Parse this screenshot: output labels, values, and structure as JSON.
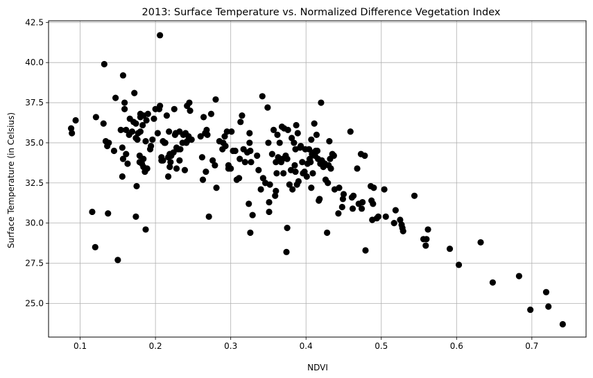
{
  "chart_data": {
    "type": "scatter",
    "title": "2013: Surface Temperature vs. Normalized Difference Vegetation Index",
    "xlabel": "NDVI",
    "ylabel": "Surface Temperature (in Celsius)",
    "xlim": [
      0.058,
      0.772
    ],
    "ylim": [
      22.9,
      42.6
    ],
    "xticks": [
      0.1,
      0.2,
      0.3,
      0.4,
      0.5,
      0.6,
      0.7
    ],
    "xtick_labels": [
      "0.1",
      "0.2",
      "0.3",
      "0.4",
      "0.5",
      "0.6",
      "0.7"
    ],
    "yticks": [
      25.0,
      27.5,
      30.0,
      32.5,
      35.0,
      37.5,
      40.0,
      42.5
    ],
    "ytick_labels": [
      "25.0",
      "27.5",
      "30.0",
      "32.5",
      "35.0",
      "37.5",
      "40.0",
      "42.5"
    ],
    "grid": true,
    "marker_color": "#000000",
    "points": [
      [
        0.088,
        35.9
      ],
      [
        0.089,
        35.6
      ],
      [
        0.094,
        36.4
      ],
      [
        0.116,
        30.7
      ],
      [
        0.12,
        28.5
      ],
      [
        0.121,
        36.6
      ],
      [
        0.131,
        36.2
      ],
      [
        0.132,
        39.9
      ],
      [
        0.134,
        35.1
      ],
      [
        0.136,
        34.8
      ],
      [
        0.137,
        30.6
      ],
      [
        0.138,
        35.0
      ],
      [
        0.145,
        34.5
      ],
      [
        0.147,
        37.8
      ],
      [
        0.15,
        27.7
      ],
      [
        0.154,
        35.8
      ],
      [
        0.156,
        34.7
      ],
      [
        0.156,
        32.9
      ],
      [
        0.157,
        34.0
      ],
      [
        0.157,
        39.2
      ],
      [
        0.159,
        37.5
      ],
      [
        0.159,
        37.1
      ],
      [
        0.161,
        35.8
      ],
      [
        0.161,
        34.3
      ],
      [
        0.163,
        33.7
      ],
      [
        0.165,
        35.5
      ],
      [
        0.166,
        36.5
      ],
      [
        0.169,
        35.7
      ],
      [
        0.171,
        36.3
      ],
      [
        0.172,
        38.1
      ],
      [
        0.174,
        36.2
      ],
      [
        0.174,
        35.3
      ],
      [
        0.174,
        30.4
      ],
      [
        0.175,
        32.3
      ],
      [
        0.176,
        35.2
      ],
      [
        0.177,
        35.6
      ],
      [
        0.179,
        34.2
      ],
      [
        0.179,
        33.8
      ],
      [
        0.18,
        36.6
      ],
      [
        0.18,
        36.8
      ],
      [
        0.18,
        35.7
      ],
      [
        0.182,
        33.7
      ],
      [
        0.183,
        36.1
      ],
      [
        0.184,
        33.5
      ],
      [
        0.184,
        34.0
      ],
      [
        0.184,
        36.7
      ],
      [
        0.186,
        33.2
      ],
      [
        0.187,
        35.1
      ],
      [
        0.187,
        29.6
      ],
      [
        0.188,
        36.4
      ],
      [
        0.189,
        33.4
      ],
      [
        0.19,
        36.8
      ],
      [
        0.193,
        34.6
      ],
      [
        0.194,
        34.8
      ],
      [
        0.196,
        35.2
      ],
      [
        0.198,
        36.5
      ],
      [
        0.2,
        37.1
      ],
      [
        0.203,
        35.6
      ],
      [
        0.205,
        37.1
      ],
      [
        0.206,
        37.3
      ],
      [
        0.206,
        41.7
      ],
      [
        0.208,
        33.9
      ],
      [
        0.208,
        34.1
      ],
      [
        0.21,
        35.1
      ],
      [
        0.21,
        33.9
      ],
      [
        0.212,
        35.0
      ],
      [
        0.213,
        35.0
      ],
      [
        0.215,
        36.7
      ],
      [
        0.217,
        34.1
      ],
      [
        0.217,
        32.9
      ],
      [
        0.218,
        35.7
      ],
      [
        0.219,
        34.3
      ],
      [
        0.219,
        33.5
      ],
      [
        0.22,
        33.8
      ],
      [
        0.221,
        34.2
      ],
      [
        0.224,
        34.4
      ],
      [
        0.225,
        37.1
      ],
      [
        0.226,
        35.5
      ],
      [
        0.227,
        35.6
      ],
      [
        0.228,
        34.7
      ],
      [
        0.228,
        33.4
      ],
      [
        0.23,
        34.6
      ],
      [
        0.232,
        35.7
      ],
      [
        0.232,
        33.9
      ],
      [
        0.233,
        34.6
      ],
      [
        0.236,
        35.0
      ],
      [
        0.237,
        35.5
      ],
      [
        0.239,
        33.3
      ],
      [
        0.24,
        35.6
      ],
      [
        0.241,
        35.0
      ],
      [
        0.242,
        35.1
      ],
      [
        0.242,
        37.3
      ],
      [
        0.244,
        35.4
      ],
      [
        0.245,
        37.5
      ],
      [
        0.246,
        37.0
      ],
      [
        0.248,
        35.2
      ],
      [
        0.26,
        35.4
      ],
      [
        0.262,
        34.1
      ],
      [
        0.263,
        32.7
      ],
      [
        0.264,
        36.6
      ],
      [
        0.266,
        35.6
      ],
      [
        0.267,
        33.2
      ],
      [
        0.268,
        35.8
      ],
      [
        0.269,
        35.5
      ],
      [
        0.271,
        30.4
      ],
      [
        0.274,
        36.8
      ],
      [
        0.276,
        33.9
      ],
      [
        0.279,
        33.6
      ],
      [
        0.28,
        37.7
      ],
      [
        0.281,
        32.2
      ],
      [
        0.285,
        35.1
      ],
      [
        0.289,
        34.6
      ],
      [
        0.29,
        35.0
      ],
      [
        0.292,
        35.4
      ],
      [
        0.293,
        34.8
      ],
      [
        0.295,
        35.7
      ],
      [
        0.297,
        33.4
      ],
      [
        0.297,
        33.6
      ],
      [
        0.3,
        33.4
      ],
      [
        0.301,
        35.7
      ],
      [
        0.303,
        34.5
      ],
      [
        0.306,
        34.5
      ],
      [
        0.308,
        32.7
      ],
      [
        0.311,
        32.8
      ],
      [
        0.312,
        34.0
      ],
      [
        0.313,
        36.3
      ],
      [
        0.315,
        36.7
      ],
      [
        0.317,
        34.6
      ],
      [
        0.319,
        33.8
      ],
      [
        0.322,
        34.4
      ],
      [
        0.324,
        31.2
      ],
      [
        0.325,
        35.6
      ],
      [
        0.325,
        35.0
      ],
      [
        0.326,
        29.4
      ],
      [
        0.326,
        34.5
      ],
      [
        0.327,
        33.8
      ],
      [
        0.329,
        30.5
      ],
      [
        0.335,
        34.2
      ],
      [
        0.337,
        33.3
      ],
      [
        0.34,
        32.1
      ],
      [
        0.342,
        37.9
      ],
      [
        0.343,
        32.8
      ],
      [
        0.346,
        32.5
      ],
      [
        0.349,
        37.2
      ],
      [
        0.35,
        35.0
      ],
      [
        0.351,
        31.3
      ],
      [
        0.351,
        30.7
      ],
      [
        0.352,
        32.4
      ],
      [
        0.355,
        34.3
      ],
      [
        0.357,
        35.8
      ],
      [
        0.359,
        31.7
      ],
      [
        0.36,
        33.8
      ],
      [
        0.36,
        32.0
      ],
      [
        0.361,
        33.1
      ],
      [
        0.362,
        35.5
      ],
      [
        0.363,
        34.1
      ],
      [
        0.365,
        35.0
      ],
      [
        0.366,
        33.9
      ],
      [
        0.367,
        33.8
      ],
      [
        0.368,
        36.0
      ],
      [
        0.369,
        34.0
      ],
      [
        0.37,
        33.1
      ],
      [
        0.371,
        35.9
      ],
      [
        0.373,
        34.2
      ],
      [
        0.374,
        28.2
      ],
      [
        0.375,
        29.7
      ],
      [
        0.375,
        34.0
      ],
      [
        0.376,
        35.8
      ],
      [
        0.378,
        32.4
      ],
      [
        0.38,
        33.3
      ],
      [
        0.381,
        35.3
      ],
      [
        0.382,
        32.1
      ],
      [
        0.384,
        35.0
      ],
      [
        0.385,
        33.6
      ],
      [
        0.386,
        34.6
      ],
      [
        0.386,
        33.2
      ],
      [
        0.387,
        36.1
      ],
      [
        0.388,
        32.4
      ],
      [
        0.389,
        35.6
      ],
      [
        0.39,
        32.6
      ],
      [
        0.392,
        34.7
      ],
      [
        0.393,
        34.8
      ],
      [
        0.395,
        33.8
      ],
      [
        0.396,
        33.1
      ],
      [
        0.398,
        33.2
      ],
      [
        0.399,
        34.6
      ],
      [
        0.401,
        32.9
      ],
      [
        0.402,
        33.7
      ],
      [
        0.404,
        34.6
      ],
      [
        0.405,
        34.0
      ],
      [
        0.406,
        33.8
      ],
      [
        0.407,
        35.2
      ],
      [
        0.407,
        32.2
      ],
      [
        0.408,
        34.3
      ],
      [
        0.409,
        33.1
      ],
      [
        0.41,
        34.4
      ],
      [
        0.411,
        36.2
      ],
      [
        0.412,
        34.2
      ],
      [
        0.413,
        34.5
      ],
      [
        0.414,
        35.5
      ],
      [
        0.415,
        34.5
      ],
      [
        0.416,
        34.0
      ],
      [
        0.417,
        31.4
      ],
      [
        0.418,
        31.5
      ],
      [
        0.419,
        33.7
      ],
      [
        0.42,
        37.5
      ],
      [
        0.421,
        33.9
      ],
      [
        0.422,
        33.8
      ],
      [
        0.423,
        33.5
      ],
      [
        0.425,
        33.7
      ],
      [
        0.426,
        32.7
      ],
      [
        0.428,
        29.4
      ],
      [
        0.429,
        32.5
      ],
      [
        0.43,
        33.6
      ],
      [
        0.431,
        35.1
      ],
      [
        0.432,
        34.0
      ],
      [
        0.433,
        33.4
      ],
      [
        0.435,
        34.3
      ],
      [
        0.437,
        34.2
      ],
      [
        0.438,
        32.1
      ],
      [
        0.443,
        30.6
      ],
      [
        0.444,
        32.2
      ],
      [
        0.448,
        31.0
      ],
      [
        0.449,
        31.5
      ],
      [
        0.45,
        31.8
      ],
      [
        0.459,
        35.7
      ],
      [
        0.461,
        31.6
      ],
      [
        0.462,
        30.9
      ],
      [
        0.463,
        31.7
      ],
      [
        0.468,
        33.4
      ],
      [
        0.47,
        31.2
      ],
      [
        0.473,
        34.3
      ],
      [
        0.474,
        30.9
      ],
      [
        0.475,
        31.3
      ],
      [
        0.478,
        34.2
      ],
      [
        0.479,
        28.3
      ],
      [
        0.486,
        32.3
      ],
      [
        0.487,
        31.4
      ],
      [
        0.488,
        30.2
      ],
      [
        0.489,
        31.2
      ],
      [
        0.49,
        32.2
      ],
      [
        0.494,
        30.3
      ],
      [
        0.496,
        30.4
      ],
      [
        0.504,
        32.1
      ],
      [
        0.506,
        30.4
      ],
      [
        0.517,
        30.0
      ],
      [
        0.519,
        30.8
      ],
      [
        0.525,
        30.2
      ],
      [
        0.527,
        29.9
      ],
      [
        0.528,
        29.7
      ],
      [
        0.529,
        29.5
      ],
      [
        0.544,
        31.7
      ],
      [
        0.556,
        29.0
      ],
      [
        0.559,
        28.6
      ],
      [
        0.56,
        29.0
      ],
      [
        0.562,
        29.6
      ],
      [
        0.591,
        28.4
      ],
      [
        0.603,
        27.4
      ],
      [
        0.632,
        28.8
      ],
      [
        0.648,
        26.3
      ],
      [
        0.683,
        26.7
      ],
      [
        0.698,
        24.6
      ],
      [
        0.719,
        25.7
      ],
      [
        0.722,
        24.8
      ],
      [
        0.741,
        23.7
      ]
    ]
  }
}
